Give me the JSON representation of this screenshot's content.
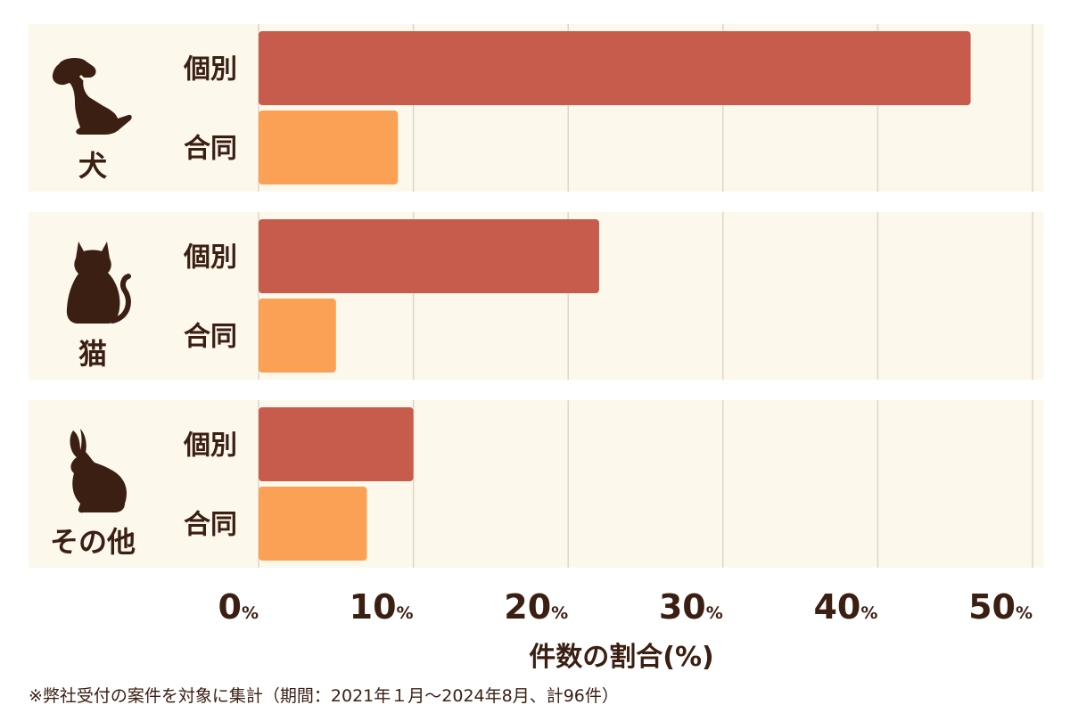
{
  "chart_data": {
    "type": "bar",
    "orientation": "horizontal",
    "groups": [
      {
        "name": "犬",
        "icon": "dog-icon"
      },
      {
        "name": "猫",
        "icon": "cat-icon"
      },
      {
        "name": "その他",
        "icon": "rabbit-icon"
      }
    ],
    "series": [
      {
        "name": "個別",
        "color": "#c75b4c",
        "values": [
          46,
          22,
          10
        ]
      },
      {
        "name": "合同",
        "color": "#fba155",
        "values": [
          9,
          5,
          7
        ]
      }
    ],
    "xlim": [
      0,
      50
    ],
    "xticks": [
      0,
      10,
      20,
      30,
      40,
      50
    ],
    "tick_suffix": "%",
    "xlabel": "件数の割合(%)",
    "grid": true,
    "panel_color": "#fdf8ec",
    "grid_color": "#ddd6c8",
    "text_color": "#3a1f12"
  },
  "footnote": "※弊社受付の案件を対象に集計（期間：2021年１月〜2024年8月、計96件）"
}
